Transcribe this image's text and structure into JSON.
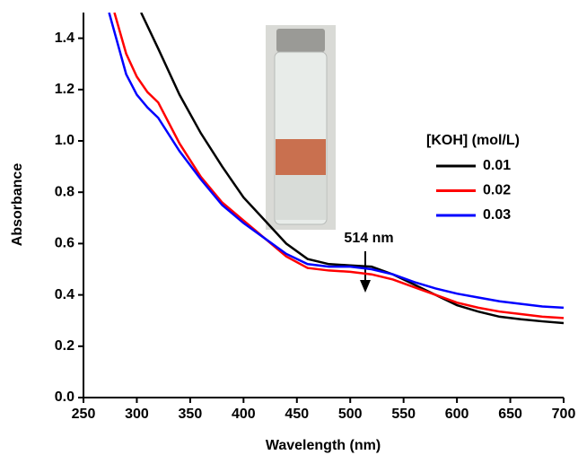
{
  "chart_data": {
    "type": "line",
    "xlabel": "Wavelength (nm)",
    "ylabel": "Absorbance",
    "xlim": [
      250,
      700
    ],
    "ylim": [
      0,
      1.5
    ],
    "xticks": [
      250,
      300,
      350,
      400,
      450,
      500,
      550,
      600,
      650,
      700
    ],
    "yticks": [
      {
        "value": 0,
        "label": "0.0"
      },
      0.2,
      0.4,
      0.6,
      0.8,
      {
        "value": 1,
        "label": "1.0"
      },
      1.2,
      1.4
    ],
    "legend_title": "[KOH] (mol/L)",
    "annotation": {
      "text": "514 nm",
      "x": 514
    },
    "series": [
      {
        "name": "0.01",
        "color": "#000000",
        "x": [
          304,
          320,
          340,
          360,
          380,
          400,
          420,
          440,
          460,
          480,
          500,
          520,
          540,
          560,
          580,
          600,
          620,
          640,
          660,
          680,
          700
        ],
        "values": [
          1.5,
          1.36,
          1.18,
          1.03,
          0.9,
          0.78,
          0.69,
          0.6,
          0.54,
          0.52,
          0.515,
          0.51,
          0.48,
          0.44,
          0.4,
          0.36,
          0.335,
          0.315,
          0.305,
          0.297,
          0.29
        ]
      },
      {
        "name": "0.02",
        "color": "#ff0000",
        "x": [
          279,
          290,
          300,
          310,
          320,
          340,
          360,
          380,
          400,
          420,
          440,
          460,
          480,
          500,
          520,
          540,
          560,
          580,
          600,
          620,
          640,
          660,
          680,
          700
        ],
        "values": [
          1.5,
          1.34,
          1.25,
          1.19,
          1.15,
          0.99,
          0.86,
          0.76,
          0.69,
          0.62,
          0.55,
          0.505,
          0.495,
          0.49,
          0.48,
          0.46,
          0.43,
          0.4,
          0.37,
          0.35,
          0.335,
          0.325,
          0.315,
          0.31
        ]
      },
      {
        "name": "0.03",
        "color": "#0000ff",
        "x": [
          274,
          290,
          300,
          310,
          320,
          340,
          360,
          380,
          400,
          420,
          440,
          460,
          480,
          500,
          520,
          540,
          560,
          580,
          600,
          620,
          640,
          660,
          680,
          700
        ],
        "values": [
          1.5,
          1.26,
          1.18,
          1.13,
          1.09,
          0.96,
          0.85,
          0.75,
          0.68,
          0.62,
          0.56,
          0.52,
          0.51,
          0.51,
          0.5,
          0.48,
          0.45,
          0.425,
          0.405,
          0.39,
          0.375,
          0.365,
          0.355,
          0.35
        ]
      }
    ]
  }
}
